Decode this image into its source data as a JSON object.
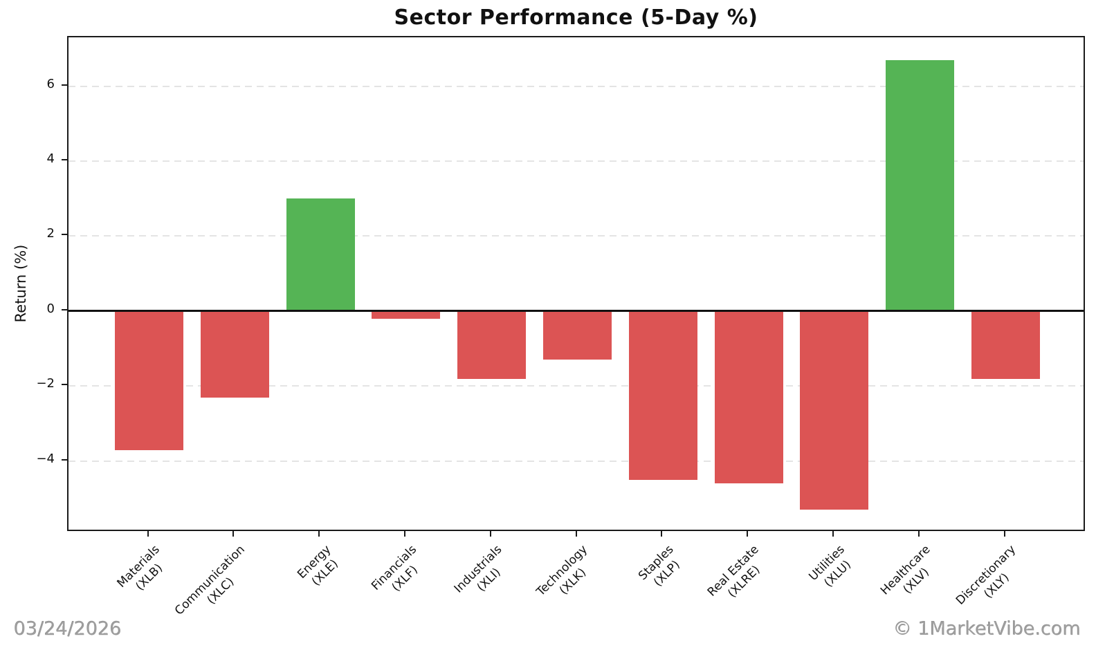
{
  "footer": {
    "date": "03/24/2026",
    "watermark": "© 1MarketVibe.com"
  },
  "chart_data": {
    "type": "bar",
    "title": "Sector Performance (5-Day %)",
    "ylabel": "Return (%)",
    "xlabel": "",
    "categories": [
      "Materials\n(XLB)",
      "Communication\n(XLC)",
      "Energy\n(XLE)",
      "Financials\n(XLF)",
      "Industrials\n(XLI)",
      "Technology\n(XLK)",
      "Staples\n(XLP)",
      "Real Estate\n(XLRE)",
      "Utilities\n(XLU)",
      "Healthcare\n(XLV)",
      "Discretionary\n(XLY)"
    ],
    "values": [
      -3.7,
      -2.3,
      3.0,
      -0.2,
      -1.8,
      -1.3,
      -4.5,
      -4.6,
      -5.3,
      6.7,
      -1.8
    ],
    "yticks": [
      6,
      4,
      2,
      0,
      -2,
      -4
    ],
    "ytick_labels": [
      "6",
      "4",
      "2",
      "0",
      "−2",
      "−4"
    ],
    "ylim": [
      -5.9,
      7.3
    ],
    "grid": "horizontal-dashed",
    "legend": "none",
    "colors": {
      "positive": "#55b455",
      "negative": "#dc5454",
      "zero_line": "#111111",
      "grid": "#e4e4e4",
      "spine": "#1a1a1a",
      "footer_text": "#9e9e9e"
    }
  }
}
